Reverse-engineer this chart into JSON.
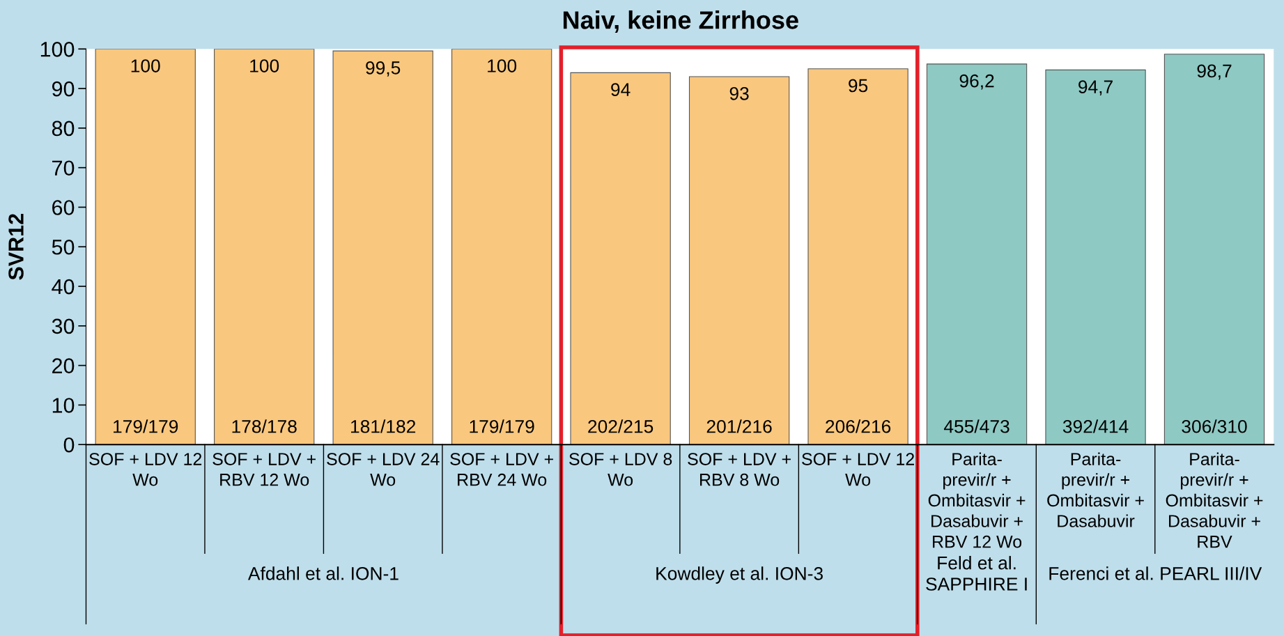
{
  "chart_data": {
    "type": "bar",
    "title": "Naiv, keine Zirrhose",
    "ylabel": "SVR12",
    "categories": [
      "SOF + LDV 12 Wo",
      "SOF + LDV + RBV 12 Wo",
      "SOF + LDV 24 Wo",
      "SOF + LDV + RBV 24 Wo",
      "SOF + LDV 8 Wo",
      "SOF + LDV + RBV 8 Wo",
      "SOF + LDV 12 Wo",
      "Parita-previr/r + Ombitasvir + Dasabuvir + RBV 12 Wo",
      "Parita-previr/r + Ombitasvir + Dasabuvir",
      "Parita-previr/r + Ombitasvir + Dasabuvir + RBV"
    ],
    "values": [
      100,
      100,
      99.5,
      100,
      94,
      93,
      95,
      96.2,
      94.7,
      98.7
    ],
    "value_labels": [
      "100",
      "100",
      "99,5",
      "100",
      "94",
      "93",
      "95",
      "96,2",
      "94,7",
      "98,7"
    ],
    "colors": [
      "#f9c77e",
      "#f9c77e",
      "#f9c77e",
      "#f9c77e",
      "#f9c77e",
      "#f9c77e",
      "#f9c77e",
      "#8ec9c3",
      "#8ec9c3",
      "#8ec9c3"
    ],
    "ylim": [
      0,
      100
    ],
    "yticks": [
      0,
      10,
      20,
      30,
      40,
      50,
      60,
      70,
      80,
      90,
      100
    ],
    "grid": false,
    "legend": false,
    "annotations": [
      "179/179",
      "178/178",
      "181/182",
      "179/179",
      "202/215",
      "201/216",
      "206/216",
      "455/473",
      "392/414",
      "306/310",
      "Afdahl et al. ION-1",
      "Kowdley et al. ION-3",
      "Feld et al.\nSAPPHIRE I",
      "Ferenci et al. PEARL III/IV"
    ]
  }
}
